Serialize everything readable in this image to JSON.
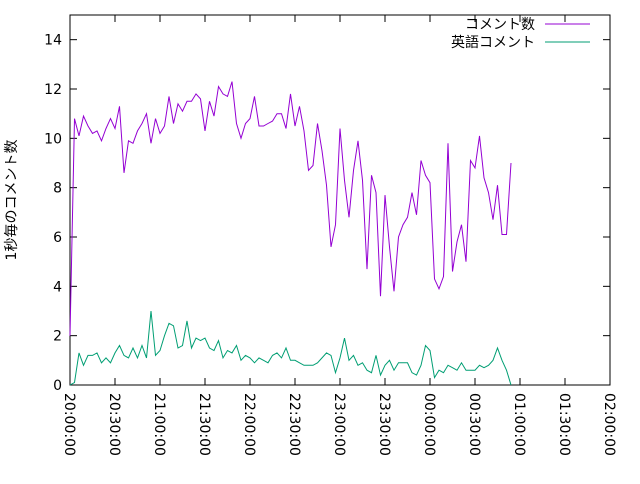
{
  "chart_data": {
    "type": "line",
    "title": "",
    "xlabel": "",
    "ylabel": "1秒毎のコメント数",
    "xlim": [
      "20:00:00",
      "02:00:00"
    ],
    "ylim": [
      0,
      15
    ],
    "grid": false,
    "legend_position": "top-right",
    "x_ticks": [
      "20:00:00",
      "20:30:00",
      "21:00:00",
      "21:30:00",
      "22:00:00",
      "22:30:00",
      "23:00:00",
      "23:30:00",
      "00:00:00",
      "00:30:00",
      "01:00:00",
      "01:30:00",
      "02:00:00"
    ],
    "y_ticks": [
      "0",
      "2",
      "4",
      "6",
      "8",
      "10",
      "12",
      "14"
    ],
    "x_interval_minutes": 3,
    "series": [
      {
        "name": "コメント数",
        "color": "#9400d3",
        "x_start": "20:00:00",
        "values": [
          2.0,
          10.8,
          10.1,
          10.9,
          10.5,
          10.2,
          10.3,
          9.9,
          10.4,
          10.8,
          10.4,
          11.3,
          8.6,
          9.9,
          9.8,
          10.3,
          10.6,
          11.0,
          9.8,
          10.8,
          10.2,
          10.5,
          11.7,
          10.6,
          11.4,
          11.1,
          11.5,
          11.5,
          11.8,
          11.6,
          10.3,
          11.5,
          10.9,
          12.1,
          11.8,
          11.7,
          12.3,
          10.6,
          10.0,
          10.6,
          10.8,
          11.7,
          10.5,
          10.5,
          10.6,
          10.7,
          11.0,
          11.0,
          10.4,
          11.8,
          10.5,
          11.3,
          10.3,
          8.7,
          8.9,
          10.6,
          9.5,
          8.1,
          5.6,
          6.5,
          10.4,
          8.3,
          6.8,
          8.7,
          9.9,
          8.3,
          4.7,
          8.5,
          7.8,
          3.6,
          7.7,
          5.6,
          3.8,
          6.0,
          6.5,
          6.8,
          7.8,
          6.9,
          9.1,
          8.5,
          8.2,
          4.3,
          3.9,
          4.4,
          9.8,
          4.6,
          5.8,
          6.5,
          5.0,
          9.1,
          8.8,
          10.1,
          8.4,
          7.8,
          6.7,
          8.1,
          6.1,
          6.1,
          9.0
        ]
      },
      {
        "name": "英語コメント",
        "color": "#009e73",
        "x_start": "20:00:00",
        "values": [
          0.0,
          0.1,
          1.3,
          0.8,
          1.2,
          1.2,
          1.3,
          0.9,
          1.1,
          0.9,
          1.3,
          1.6,
          1.2,
          1.1,
          1.5,
          1.1,
          1.6,
          1.1,
          3.0,
          1.2,
          1.4,
          2.0,
          2.5,
          2.4,
          1.5,
          1.6,
          2.6,
          1.5,
          1.9,
          1.8,
          1.9,
          1.5,
          1.4,
          1.8,
          1.1,
          1.4,
          1.3,
          1.6,
          1.0,
          1.2,
          1.1,
          0.9,
          1.1,
          1.0,
          0.9,
          1.2,
          1.3,
          1.1,
          1.5,
          1.0,
          1.0,
          0.9,
          0.8,
          0.8,
          0.8,
          0.9,
          1.1,
          1.3,
          1.2,
          0.5,
          1.1,
          1.9,
          1.0,
          1.2,
          0.8,
          0.9,
          0.6,
          0.5,
          1.2,
          0.4,
          0.8,
          1.0,
          0.6,
          0.9,
          0.9,
          0.9,
          0.5,
          0.4,
          0.8,
          1.6,
          1.4,
          0.3,
          0.6,
          0.5,
          0.8,
          0.7,
          0.6,
          0.9,
          0.6,
          0.6,
          0.6,
          0.8,
          0.7,
          0.8,
          1.0,
          1.5,
          1.0,
          0.6,
          0.0
        ]
      }
    ]
  }
}
